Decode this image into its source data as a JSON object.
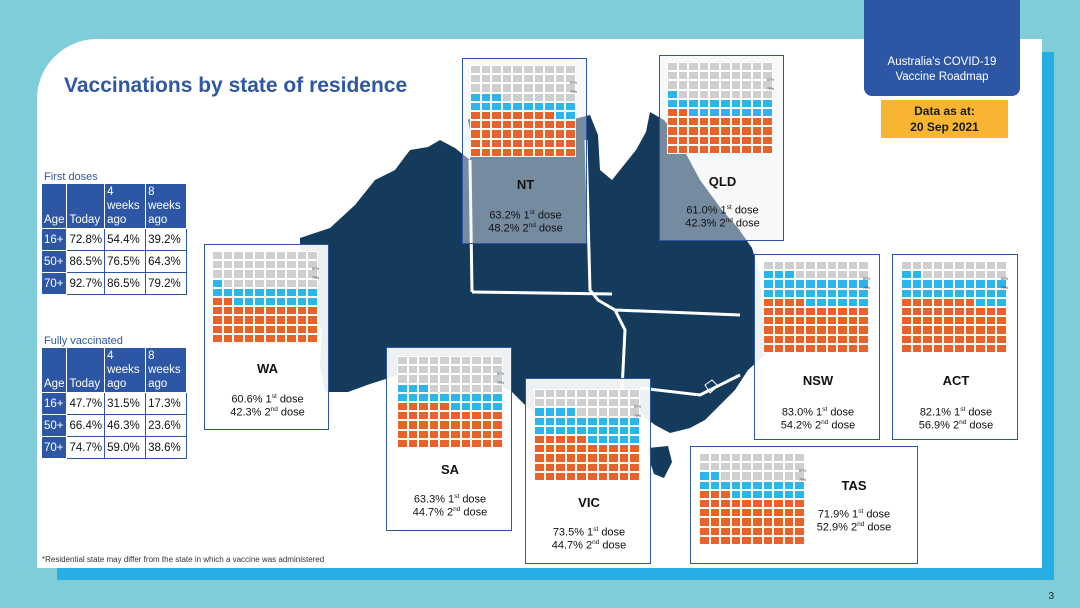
{
  "title": "Vaccinations by state of residence",
  "roadmap": {
    "line1": "Australia's COVID-19",
    "line2": "Vaccine Roadmap"
  },
  "data_as_at": {
    "line1": "Data as at:",
    "line2": "20 Sep 2021"
  },
  "first_doses": {
    "caption": "First doses",
    "headers": [
      "Age",
      "Today",
      "4 weeks ago",
      "8 weeks ago"
    ],
    "rows": [
      [
        "16+",
        "72.8%",
        "54.4%",
        "39.2%"
      ],
      [
        "50+",
        "86.5%",
        "76.5%",
        "64.3%"
      ],
      [
        "70+",
        "92.7%",
        "86.5%",
        "79.2%"
      ]
    ]
  },
  "fully_vaccinated": {
    "caption": "Fully vaccinated",
    "headers": [
      "Age",
      "Today",
      "4 weeks ago",
      "8 weeks ago"
    ],
    "rows": [
      [
        "16+",
        "47.7%",
        "31.5%",
        "17.3%"
      ],
      [
        "50+",
        "66.4%",
        "46.3%",
        "23.6%"
      ],
      [
        "70+",
        "74.7%",
        "59.0%",
        "38.6%"
      ]
    ]
  },
  "dose_suffix": {
    "first": "dose",
    "second": "dose",
    "first_sup": "st",
    "second_sup": "nd"
  },
  "states": [
    {
      "name": "WA",
      "first": "60.6% 1",
      "second": "42.3% 2",
      "first_pct": 60.6,
      "second_pct": 42.3
    },
    {
      "name": "NT",
      "first": "63.2% 1",
      "second": "48.2% 2",
      "first_pct": 63.2,
      "second_pct": 48.2
    },
    {
      "name": "QLD",
      "first": "61.0% 1",
      "second": "42.3% 2",
      "first_pct": 61.0,
      "second_pct": 42.3
    },
    {
      "name": "SA",
      "first": "63.3% 1",
      "second": "44.7% 2",
      "first_pct": 63.3,
      "second_pct": 44.7
    },
    {
      "name": "VIC",
      "first": "73.5% 1",
      "second": "44.7% 2",
      "first_pct": 73.5,
      "second_pct": 44.7
    },
    {
      "name": "NSW",
      "first": "83.0% 1",
      "second": "54.2% 2",
      "first_pct": 83.0,
      "second_pct": 54.2
    },
    {
      "name": "ACT",
      "first": "82.1% 1",
      "second": "56.9% 2",
      "first_pct": 82.1,
      "second_pct": 56.9
    },
    {
      "name": "TAS",
      "first": "71.9% 1",
      "second": "52.9% 2",
      "first_pct": 71.9,
      "second_pct": 52.9
    }
  ],
  "waffle_labels": {
    "upper": "80%",
    "lower": "70%"
  },
  "colors": {
    "first_dose": "#2bb5ea",
    "second_dose": "#e8622a",
    "unvaccinated": "#cfcfcf",
    "map": "#143a5c",
    "brand": "#2d57a5"
  },
  "footnote": "*Residential state may differ from the state in which a vaccine was administered",
  "page_number": "3"
}
